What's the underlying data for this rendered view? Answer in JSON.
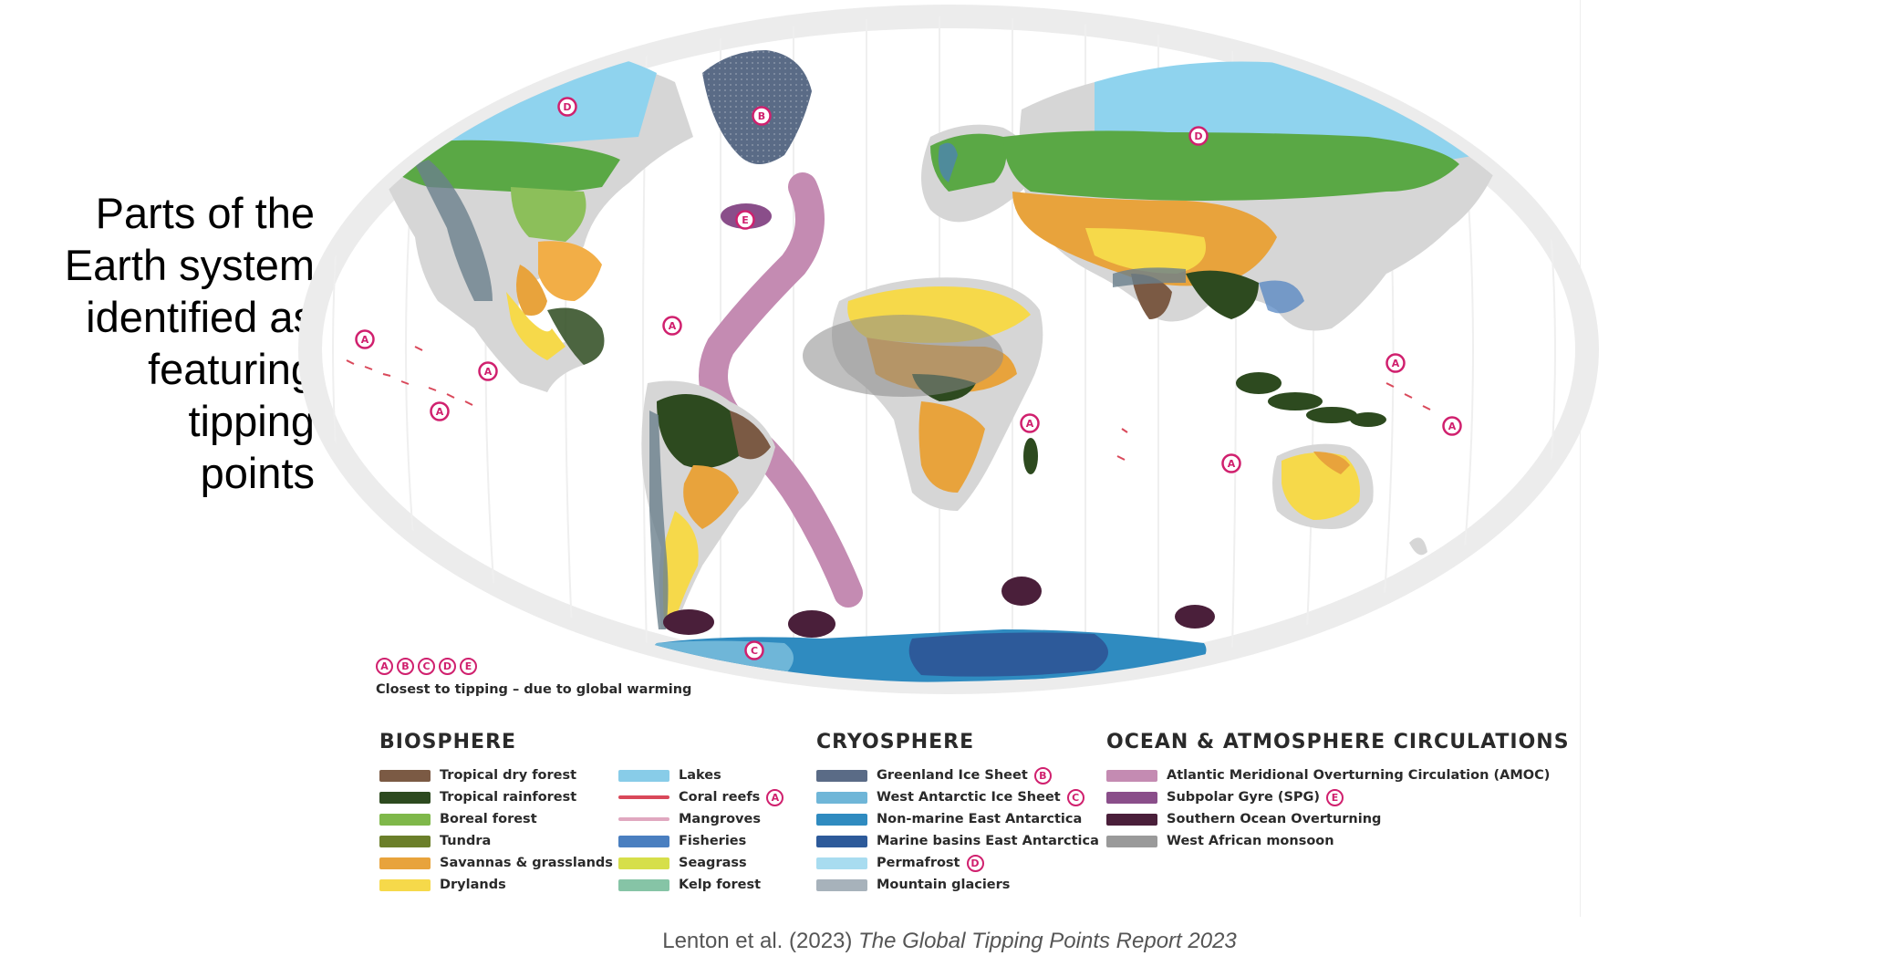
{
  "side_title": "Parts of the\nEarth system\nidentified as\nfeaturing\ntipping\npoints",
  "map": {
    "markers": [
      {
        "letter": "D",
        "region": "north-america-permafrost"
      },
      {
        "letter": "B",
        "region": "greenland"
      },
      {
        "letter": "E",
        "region": "subpolar-gyre"
      },
      {
        "letter": "D",
        "region": "siberia-permafrost"
      },
      {
        "letter": "A",
        "region": "pacific-reefs-1"
      },
      {
        "letter": "A",
        "region": "pacific-reefs-2"
      },
      {
        "letter": "A",
        "region": "pacific-reefs-3"
      },
      {
        "letter": "A",
        "region": "caribbean-reefs"
      },
      {
        "letter": "A",
        "region": "east-africa-reefs"
      },
      {
        "letter": "A",
        "region": "indian-ocean-reefs"
      },
      {
        "letter": "A",
        "region": "west-pacific-reefs-1"
      },
      {
        "letter": "A",
        "region": "west-pacific-reefs-2"
      },
      {
        "letter": "C",
        "region": "west-antarctica"
      }
    ]
  },
  "closest": {
    "markers": [
      "A",
      "B",
      "C",
      "D",
      "E"
    ],
    "label": "Closest to tipping – due to global warming"
  },
  "legend": {
    "biosphere": {
      "title": "BIOSPHERE",
      "col1": [
        {
          "label": "Tropical dry forest",
          "color": "#7b5a44"
        },
        {
          "label": "Tropical rainforest",
          "color": "#2d4a1f"
        },
        {
          "label": "Boreal forest",
          "color": "#7fb84a"
        },
        {
          "label": "Tundra",
          "color": "#6b7f2a"
        },
        {
          "label": "Savannas & grasslands",
          "color": "#e8a33c"
        },
        {
          "label": "Drylands",
          "color": "#f6d94a"
        }
      ],
      "col2": [
        {
          "label": "Lakes",
          "color": "#88cce8",
          "marker": ""
        },
        {
          "label": "Coral reefs",
          "color": "#d9485a",
          "marker": "A",
          "line": true
        },
        {
          "label": "Mangroves",
          "color": "#e0a8c0",
          "marker": "",
          "line": true
        },
        {
          "label": "Fisheries",
          "color": "#4a7fc0",
          "marker": ""
        },
        {
          "label": "Seagrass",
          "color": "#d6df4a",
          "marker": ""
        },
        {
          "label": "Kelp forest",
          "color": "#86c4a6",
          "marker": ""
        }
      ]
    },
    "cryosphere": {
      "title": "CRYOSPHERE",
      "items": [
        {
          "label": "Greenland Ice Sheet",
          "color": "#5a6b86",
          "marker": "B"
        },
        {
          "label": "West Antarctic Ice Sheet",
          "color": "#6fb6d8",
          "marker": "C"
        },
        {
          "label": "Non-marine East Antarctica",
          "color": "#2f8bc0",
          "marker": ""
        },
        {
          "label": "Marine basins East Antarctica",
          "color": "#2d5a9a",
          "marker": ""
        },
        {
          "label": "Permafrost",
          "color": "#a8dcf0",
          "marker": "D"
        },
        {
          "label": "Mountain glaciers",
          "color": "#a7b2bb",
          "marker": ""
        }
      ]
    },
    "ocean": {
      "title": "OCEAN & ATMOSPHERE CIRCULATIONS",
      "items": [
        {
          "label": "Atlantic Meridional Overturning Circulation (AMOC)",
          "color": "#c48bb2",
          "marker": ""
        },
        {
          "label": "Subpolar Gyre (SPG)",
          "color": "#8a4e8a",
          "marker": "E"
        },
        {
          "label": "Southern Ocean Overturning",
          "color": "#4a1f3a",
          "marker": ""
        },
        {
          "label": "West African monsoon",
          "color": "#9a9a9a",
          "marker": ""
        }
      ]
    }
  },
  "citation": {
    "authors": "Lenton et al. (2023)",
    "work": "The Global Tipping Points Report 2023"
  },
  "colors": {
    "accent": "#d0206e",
    "land": "#d8d8d8",
    "frame": "#efefef"
  }
}
